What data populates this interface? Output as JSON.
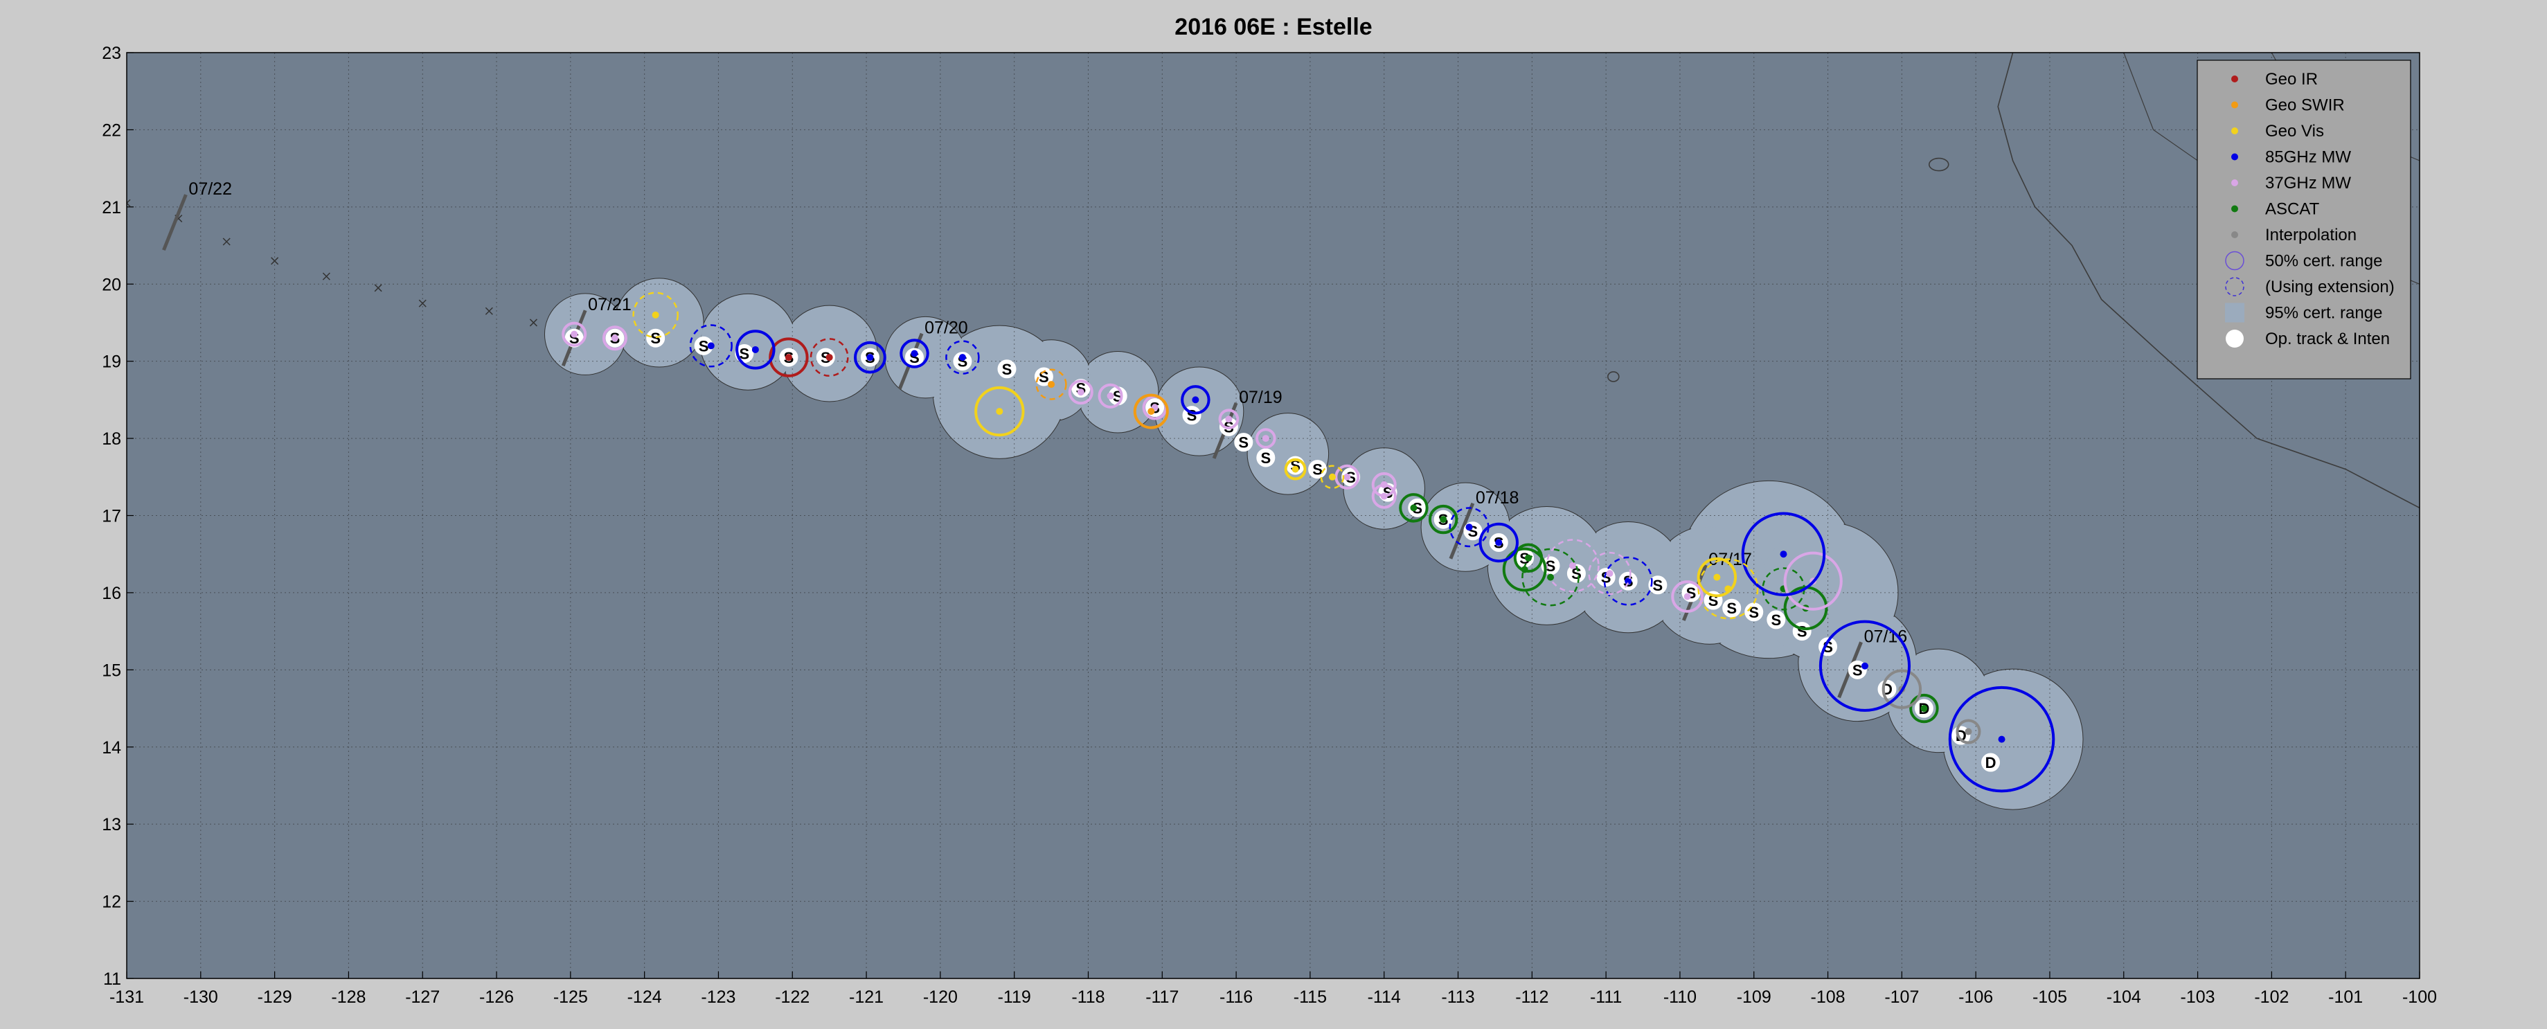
{
  "chart_data": {
    "type": "scatter",
    "title": "2016  06E :  Estelle",
    "xlim": [
      -131,
      -100
    ],
    "ylim": [
      11,
      23
    ],
    "xticks": [
      -131,
      -130,
      -129,
      -128,
      -127,
      -126,
      -125,
      -124,
      -123,
      -122,
      -121,
      -120,
      -119,
      -118,
      -117,
      -116,
      -115,
      -114,
      -113,
      -112,
      -111,
      -110,
      -109,
      -108,
      -107,
      -106,
      -105,
      -104,
      -103,
      -102,
      -101,
      -100
    ],
    "yticks": [
      11,
      12,
      13,
      14,
      15,
      16,
      17,
      18,
      19,
      20,
      21,
      22,
      23
    ],
    "grid": true,
    "legend_position": "top-right",
    "colors": {
      "ocean": "#717f8f",
      "uncertainty": "#9babbd",
      "land_line": "#3c3c3c",
      "geo_ir": "#b01c1c",
      "geo_swir": "#f29b14",
      "geo_vis": "#f2d21c",
      "mw85": "#0000e6",
      "mw37": "#d9a6e6",
      "ascat": "#117a11",
      "interp": "#888888"
    },
    "legend": [
      {
        "label": "Geo IR",
        "kind": "dot",
        "color": "geo_ir"
      },
      {
        "label": "Geo SWIR",
        "kind": "dot",
        "color": "geo_swir"
      },
      {
        "label": "Geo Vis",
        "kind": "dot",
        "color": "geo_vis"
      },
      {
        "label": "85GHz MW",
        "kind": "dot",
        "color": "mw85"
      },
      {
        "label": "37GHz MW",
        "kind": "dot",
        "color": "mw37"
      },
      {
        "label": "ASCAT",
        "kind": "dot",
        "color": "ascat"
      },
      {
        "label": "Interpolation",
        "kind": "dot",
        "color": "interp"
      },
      {
        "label": "50% cert. range",
        "kind": "circle"
      },
      {
        "label": "(Using extension)",
        "kind": "dashcircle"
      },
      {
        "label": "95% cert. range",
        "kind": "square"
      },
      {
        "label": "Op. track & Inten",
        "kind": "white"
      }
    ],
    "track": [
      {
        "lon": -105.8,
        "lat": 13.8,
        "sym": "D"
      },
      {
        "lon": -106.2,
        "lat": 14.15,
        "sym": "D"
      },
      {
        "lon": -106.7,
        "lat": 14.5,
        "sym": "D"
      },
      {
        "lon": -107.2,
        "lat": 14.75,
        "sym": "D"
      },
      {
        "lon": -107.6,
        "lat": 15.0,
        "sym": "S"
      },
      {
        "lon": -108.0,
        "lat": 15.3,
        "sym": "S"
      },
      {
        "lon": -108.35,
        "lat": 15.5,
        "sym": "S"
      },
      {
        "lon": -108.7,
        "lat": 15.65,
        "sym": "S"
      },
      {
        "lon": -109.0,
        "lat": 15.75,
        "sym": "S"
      },
      {
        "lon": -109.3,
        "lat": 15.8,
        "sym": "S"
      },
      {
        "lon": -109.55,
        "lat": 15.9,
        "sym": "S"
      },
      {
        "lon": -109.85,
        "lat": 16.0,
        "sym": "S"
      },
      {
        "lon": -110.3,
        "lat": 16.1,
        "sym": "S"
      },
      {
        "lon": -110.7,
        "lat": 16.15,
        "sym": "S"
      },
      {
        "lon": -111.0,
        "lat": 16.2,
        "sym": "S"
      },
      {
        "lon": -111.4,
        "lat": 16.25,
        "sym": "S"
      },
      {
        "lon": -111.75,
        "lat": 16.35,
        "sym": "S"
      },
      {
        "lon": -112.1,
        "lat": 16.45,
        "sym": "S"
      },
      {
        "lon": -112.45,
        "lat": 16.65,
        "sym": "S"
      },
      {
        "lon": -112.8,
        "lat": 16.8,
        "sym": "S"
      },
      {
        "lon": -113.2,
        "lat": 16.95,
        "sym": "S"
      },
      {
        "lon": -113.55,
        "lat": 17.1,
        "sym": "S"
      },
      {
        "lon": -113.95,
        "lat": 17.3,
        "sym": "S"
      },
      {
        "lon": -114.45,
        "lat": 17.5,
        "sym": "S"
      },
      {
        "lon": -114.9,
        "lat": 17.6,
        "sym": "S"
      },
      {
        "lon": -115.2,
        "lat": 17.65,
        "sym": "S"
      },
      {
        "lon": -115.6,
        "lat": 17.75,
        "sym": "S"
      },
      {
        "lon": -115.9,
        "lat": 17.95,
        "sym": "S"
      },
      {
        "lon": -116.1,
        "lat": 18.15,
        "sym": "S"
      },
      {
        "lon": -116.6,
        "lat": 18.3,
        "sym": "S"
      },
      {
        "lon": -117.1,
        "lat": 18.4,
        "sym": "S"
      },
      {
        "lon": -117.6,
        "lat": 18.55,
        "sym": "S"
      },
      {
        "lon": -118.1,
        "lat": 18.65,
        "sym": "S"
      },
      {
        "lon": -118.6,
        "lat": 18.8,
        "sym": "S"
      },
      {
        "lon": -119.1,
        "lat": 18.9,
        "sym": "S"
      },
      {
        "lon": -119.7,
        "lat": 19.0,
        "sym": "S"
      },
      {
        "lon": -120.35,
        "lat": 19.05,
        "sym": "S"
      },
      {
        "lon": -120.95,
        "lat": 19.05,
        "sym": "S"
      },
      {
        "lon": -121.55,
        "lat": 19.05,
        "sym": "S"
      },
      {
        "lon": -122.05,
        "lat": 19.05,
        "sym": "S"
      },
      {
        "lon": -122.65,
        "lat": 19.1,
        "sym": "S"
      },
      {
        "lon": -123.2,
        "lat": 19.2,
        "sym": "S"
      },
      {
        "lon": -123.85,
        "lat": 19.3,
        "sym": "S"
      },
      {
        "lon": -124.4,
        "lat": 19.3,
        "sym": "S"
      },
      {
        "lon": -124.95,
        "lat": 19.3,
        "sym": "S"
      }
    ],
    "extended_track": [
      {
        "lon": -125.5,
        "lat": 19.5
      },
      {
        "lon": -126.1,
        "lat": 19.65
      },
      {
        "lon": -127.0,
        "lat": 19.75
      },
      {
        "lon": -127.6,
        "lat": 19.95
      },
      {
        "lon": -128.3,
        "lat": 20.1
      },
      {
        "lon": -129.0,
        "lat": 20.3
      },
      {
        "lon": -129.65,
        "lat": 20.55
      },
      {
        "lon": -130.3,
        "lat": 20.85
      },
      {
        "lon": -131.0,
        "lat": 21.05
      }
    ],
    "fixes": [
      {
        "type": "mw85",
        "lon": -105.65,
        "lat": 14.1,
        "r": 0.7,
        "dash": false
      },
      {
        "type": "interp",
        "lon": -106.1,
        "lat": 14.2,
        "r": 0.15,
        "dash": false
      },
      {
        "type": "ascat",
        "lon": -106.7,
        "lat": 14.5,
        "r": 0.18,
        "dash": false
      },
      {
        "type": "interp",
        "lon": -107.0,
        "lat": 14.75,
        "r": 0.25,
        "dash": false
      },
      {
        "type": "mw85",
        "lon": -107.5,
        "lat": 15.05,
        "r": 0.6,
        "dash": false
      },
      {
        "type": "ascat",
        "lon": -108.3,
        "lat": 15.8,
        "r": 0.28,
        "dash": false
      },
      {
        "type": "ascat",
        "lon": -108.6,
        "lat": 16.05,
        "r": 0.28,
        "dash": true
      },
      {
        "type": "mw37",
        "lon": -108.2,
        "lat": 16.15,
        "r": 0.38,
        "dash": false
      },
      {
        "type": "mw85",
        "lon": -108.6,
        "lat": 16.5,
        "r": 0.55,
        "dash": false
      },
      {
        "type": "geo_vis",
        "lon": -109.35,
        "lat": 16.05,
        "r": 0.4,
        "dash": true
      },
      {
        "type": "geo_vis",
        "lon": -109.5,
        "lat": 16.2,
        "r": 0.25,
        "dash": false
      },
      {
        "type": "mw37",
        "lon": -109.9,
        "lat": 15.95,
        "r": 0.2,
        "dash": false
      },
      {
        "type": "mw85",
        "lon": -110.7,
        "lat": 16.15,
        "r": 0.32,
        "dash": true
      },
      {
        "type": "mw37",
        "lon": -110.95,
        "lat": 16.25,
        "r": 0.28,
        "dash": true
      },
      {
        "type": "mw37",
        "lon": -111.45,
        "lat": 16.35,
        "r": 0.35,
        "dash": true
      },
      {
        "type": "ascat",
        "lon": -111.75,
        "lat": 16.2,
        "r": 0.38,
        "dash": true
      },
      {
        "type": "ascat",
        "lon": -112.1,
        "lat": 16.3,
        "r": 0.28,
        "dash": false
      },
      {
        "type": "ascat",
        "lon": -112.05,
        "lat": 16.45,
        "r": 0.18,
        "dash": false
      },
      {
        "type": "mw85",
        "lon": -112.45,
        "lat": 16.65,
        "r": 0.25,
        "dash": false
      },
      {
        "type": "mw85",
        "lon": -112.85,
        "lat": 16.85,
        "r": 0.26,
        "dash": true
      },
      {
        "type": "ascat",
        "lon": -113.2,
        "lat": 16.95,
        "r": 0.18,
        "dash": false
      },
      {
        "type": "ascat",
        "lon": -113.6,
        "lat": 17.1,
        "r": 0.18,
        "dash": false
      },
      {
        "type": "mw37",
        "lon": -114.0,
        "lat": 17.25,
        "r": 0.15,
        "dash": false
      },
      {
        "type": "mw37",
        "lon": -114.0,
        "lat": 17.4,
        "r": 0.15,
        "dash": false
      },
      {
        "type": "mw37",
        "lon": -114.5,
        "lat": 17.5,
        "r": 0.15,
        "dash": false
      },
      {
        "type": "geo_vis",
        "lon": -114.7,
        "lat": 17.5,
        "r": 0.15,
        "dash": true
      },
      {
        "type": "geo_vis",
        "lon": -115.2,
        "lat": 17.6,
        "r": 0.13,
        "dash": false
      },
      {
        "type": "mw37",
        "lon": -115.6,
        "lat": 18.0,
        "r": 0.12,
        "dash": false
      },
      {
        "type": "mw37",
        "lon": -116.1,
        "lat": 18.25,
        "r": 0.12,
        "dash": false
      },
      {
        "type": "mw85",
        "lon": -116.55,
        "lat": 18.5,
        "r": 0.18,
        "dash": false
      },
      {
        "type": "mw37",
        "lon": -117.1,
        "lat": 18.4,
        "r": 0.15,
        "dash": false
      },
      {
        "type": "geo_swir",
        "lon": -117.15,
        "lat": 18.35,
        "r": 0.22,
        "dash": false
      },
      {
        "type": "mw37",
        "lon": -117.7,
        "lat": 18.55,
        "r": 0.15,
        "dash": false
      },
      {
        "type": "mw37",
        "lon": -118.1,
        "lat": 18.6,
        "r": 0.15,
        "dash": false
      },
      {
        "type": "geo_swir",
        "lon": -118.5,
        "lat": 18.7,
        "r": 0.2,
        "dash": true
      },
      {
        "type": "geo_vis",
        "lon": -119.2,
        "lat": 18.35,
        "r": 0.32,
        "dash": false
      },
      {
        "type": "mw85",
        "lon": -119.7,
        "lat": 19.05,
        "r": 0.22,
        "dash": true
      },
      {
        "type": "mw85",
        "lon": -120.35,
        "lat": 19.1,
        "r": 0.18,
        "dash": false
      },
      {
        "type": "mw85",
        "lon": -120.95,
        "lat": 19.05,
        "r": 0.2,
        "dash": false
      },
      {
        "type": "geo_ir",
        "lon": -121.5,
        "lat": 19.05,
        "r": 0.25,
        "dash": true
      },
      {
        "type": "geo_ir",
        "lon": -122.05,
        "lat": 19.05,
        "r": 0.25,
        "dash": false
      },
      {
        "type": "mw85",
        "lon": -122.5,
        "lat": 19.15,
        "r": 0.25,
        "dash": false
      },
      {
        "type": "mw85",
        "lon": -123.1,
        "lat": 19.2,
        "r": 0.28,
        "dash": true
      },
      {
        "type": "geo_vis",
        "lon": -123.85,
        "lat": 19.6,
        "r": 0.3,
        "dash": true
      },
      {
        "type": "mw37",
        "lon": -124.4,
        "lat": 19.3,
        "r": 0.15,
        "dash": false
      },
      {
        "type": "mw37",
        "lon": -124.95,
        "lat": 19.35,
        "r": 0.15,
        "dash": false
      }
    ],
    "date_marks": [
      {
        "label": "07/16",
        "lon": -107.7,
        "lat": 15.0
      },
      {
        "label": "07/17",
        "lon": -109.8,
        "lat": 16.0
      },
      {
        "label": "07/18",
        "lon": -112.95,
        "lat": 16.8
      },
      {
        "label": "07/19",
        "lon": -116.15,
        "lat": 18.1
      },
      {
        "label": "07/20",
        "lon": -120.4,
        "lat": 19.0
      },
      {
        "label": "07/21",
        "lon": -124.95,
        "lat": 19.3
      },
      {
        "label": "07/22",
        "lon": -130.35,
        "lat": 20.8
      }
    ]
  }
}
